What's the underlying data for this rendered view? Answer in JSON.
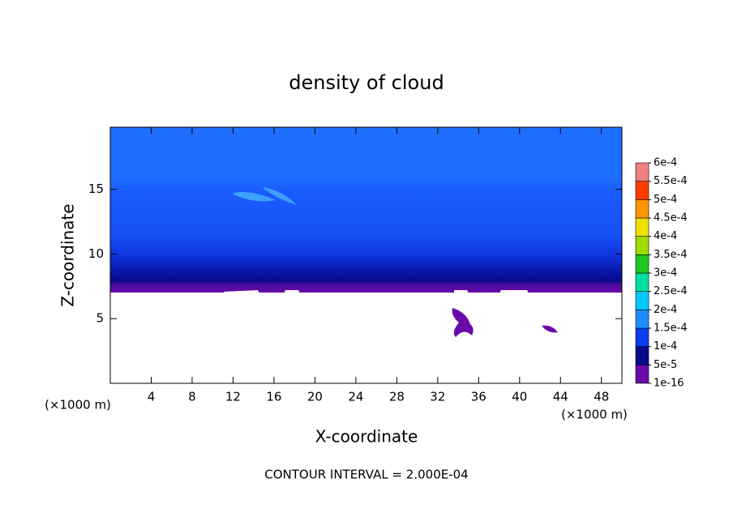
{
  "chart_data": {
    "type": "contour",
    "title": "density of cloud",
    "x_label": "X-coordinate",
    "y_label": "Z-coordinate",
    "x_unit": "(×1000 m)",
    "y_unit": "(×1000 m)",
    "annotation": "CONTOUR INTERVAL = 2.000E-04",
    "xlim": [
      0,
      50
    ],
    "xticks": [
      4,
      8,
      12,
      16,
      20,
      24,
      28,
      32,
      36,
      40,
      44,
      48
    ],
    "ylim": [
      0,
      19.8
    ],
    "yticks": [
      5,
      10,
      15
    ],
    "colorbar": {
      "levels": [
        {
          "value": 1e-16,
          "label": "1e-16"
        },
        {
          "value": 5e-05,
          "label": "5e-5"
        },
        {
          "value": 0.0001,
          "label": "1e-4"
        },
        {
          "value": 0.00015,
          "label": "1.5e-4"
        },
        {
          "value": 0.0002,
          "label": "2e-4"
        },
        {
          "value": 0.00025,
          "label": "2.5e-4"
        },
        {
          "value": 0.0003,
          "label": "3e-4"
        },
        {
          "value": 0.00035,
          "label": "3.5e-4"
        },
        {
          "value": 0.0004,
          "label": "4e-4"
        },
        {
          "value": 0.00045,
          "label": "4.5e-4"
        },
        {
          "value": 0.0005,
          "label": "5e-4"
        },
        {
          "value": 0.00055,
          "label": "5.5e-4"
        },
        {
          "value": 0.0006,
          "label": "6e-4"
        }
      ],
      "colors": [
        "#6a0aa8",
        "#0a0a8c",
        "#0a3cf0",
        "#1e8cff",
        "#00c8ff",
        "#00e0a0",
        "#20c820",
        "#a0dc00",
        "#f0e000",
        "#ff9600",
        "#ff3c00",
        "#f08080"
      ]
    }
  }
}
